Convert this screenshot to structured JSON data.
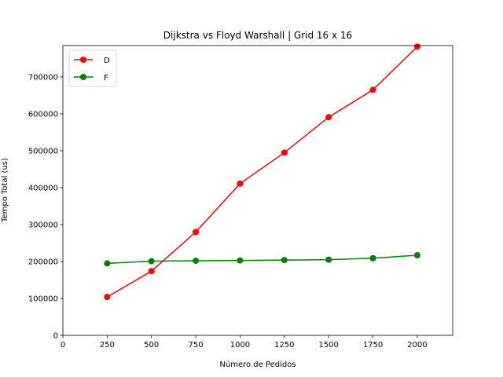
{
  "chart_data": {
    "type": "line",
    "title": "Dijkstra vs Floyd Warshall | Grid 16 x 16",
    "xlabel": "Número de Pedidos",
    "ylabel": "Tempo Total (us)",
    "xlim": [
      0,
      2200
    ],
    "ylim": [
      0,
      785000
    ],
    "x_ticks": [
      0,
      250,
      500,
      750,
      1000,
      1250,
      1500,
      1750,
      2000
    ],
    "y_ticks": [
      0,
      100000,
      200000,
      300000,
      400000,
      500000,
      600000,
      700000
    ],
    "x": [
      250,
      500,
      750,
      1000,
      1250,
      1500,
      1750,
      2000
    ],
    "series": [
      {
        "name": "D",
        "color": "#ff0000",
        "values": [
          104000,
          174000,
          280000,
          411000,
          495000,
          591000,
          665000,
          782000
        ]
      },
      {
        "name": "F",
        "color": "#008000",
        "values": [
          195000,
          201000,
          202000,
          203000,
          204000,
          205000,
          209000,
          217000
        ]
      }
    ],
    "legend_position": "top-left",
    "grid": false
  }
}
